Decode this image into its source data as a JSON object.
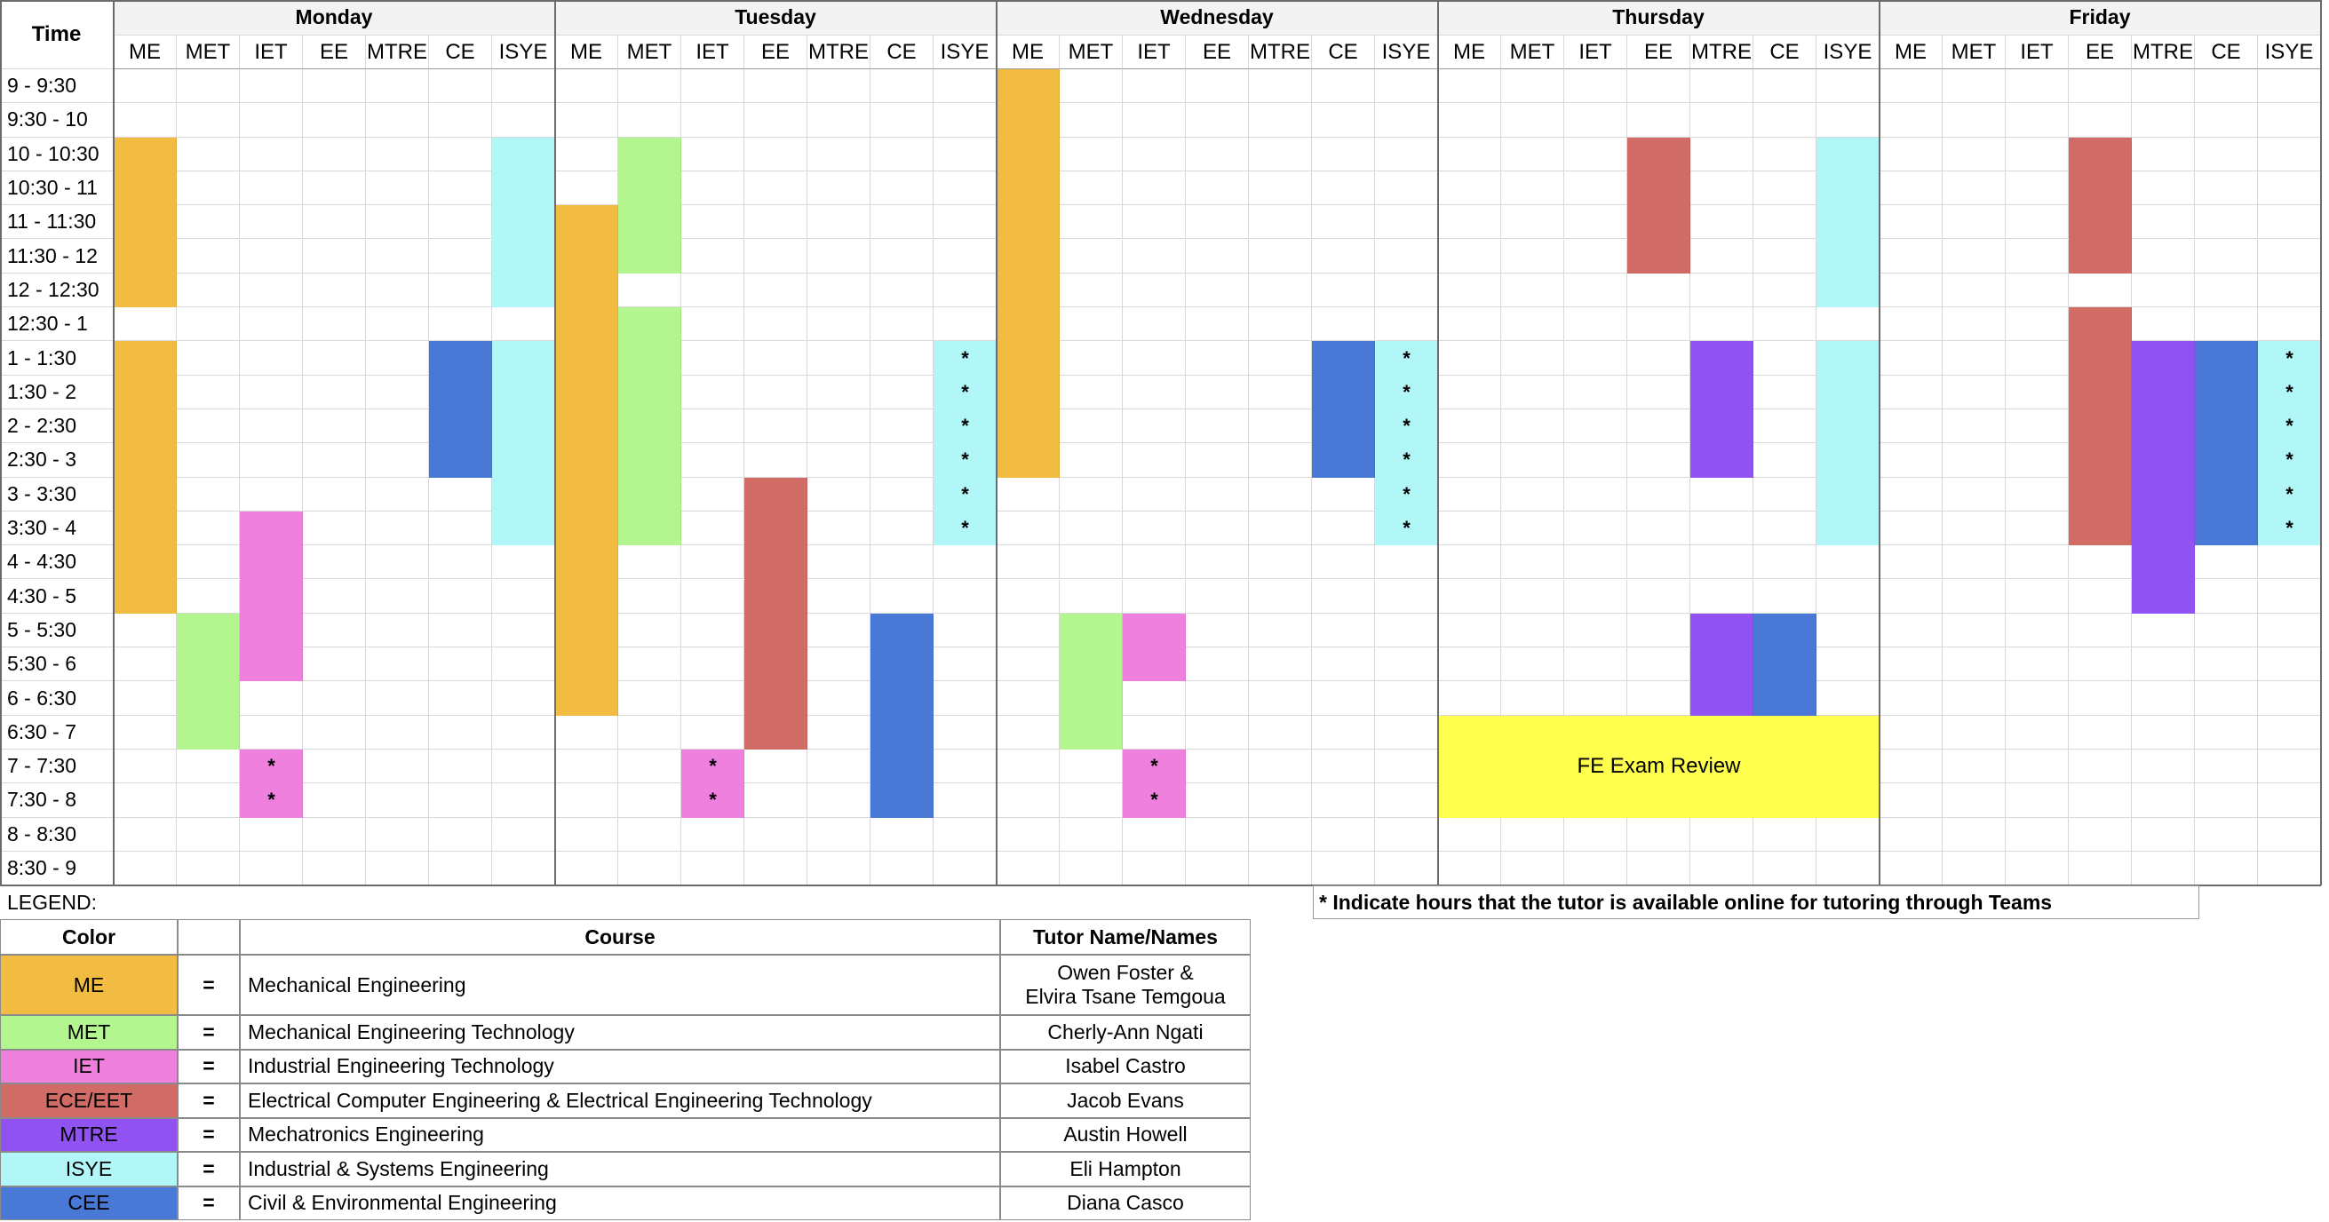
{
  "corner_label": "Time",
  "days": [
    "Monday",
    "Tuesday",
    "Wednesday",
    "Thursday",
    "Friday"
  ],
  "subjects": [
    "ME",
    "MET",
    "IET",
    "EE",
    "MTRE",
    "CE",
    "ISYE"
  ],
  "time_slots": [
    "9 - 9:30",
    "9:30 - 10",
    "10 - 10:30",
    "10:30 - 11",
    "11 - 11:30",
    "11:30 - 12",
    "12 - 12:30",
    "12:30 - 1",
    "1 - 1:30",
    "1:30 - 2",
    "2 - 2:30",
    "2:30 - 3",
    "3 - 3:30",
    "3:30 - 4",
    "4 - 4:30",
    "4:30 - 5",
    "5 - 5:30",
    "5:30 - 6",
    "6 - 6:30",
    "6:30 - 7",
    "7 - 7:30",
    "7:30 - 8",
    "8 - 8:30",
    "8:30 - 9"
  ],
  "colors": {
    "ME": "#f2bc42",
    "MET": "#b3f58f",
    "IET": "#f080dd",
    "EE": "#d16b66",
    "MTRE": "#9152f2",
    "CE": "#4a78d6",
    "ISYE": "#b2f7f7"
  },
  "schedule": [
    {
      "day": "Monday",
      "subject": "ME",
      "start": "10 - 10:30",
      "end": "12 - 12:30"
    },
    {
      "day": "Monday",
      "subject": "ME",
      "start": "1 - 1:30",
      "end": "4:30 - 5"
    },
    {
      "day": "Monday",
      "subject": "MET",
      "start": "5 - 5:30",
      "end": "6:30 - 7"
    },
    {
      "day": "Monday",
      "subject": "IET",
      "start": "3:30 - 4",
      "end": "5:30 - 6"
    },
    {
      "day": "Monday",
      "subject": "IET",
      "start": "7 - 7:30",
      "end": "7:30 - 8",
      "online": true
    },
    {
      "day": "Monday",
      "subject": "CE",
      "start": "1 - 1:30",
      "end": "2:30 - 3"
    },
    {
      "day": "Monday",
      "subject": "ISYE",
      "start": "10 - 10:30",
      "end": "12 - 12:30"
    },
    {
      "day": "Monday",
      "subject": "ISYE",
      "start": "1 - 1:30",
      "end": "3:30 - 4"
    },
    {
      "day": "Tuesday",
      "subject": "ME",
      "start": "11 - 11:30",
      "end": "6 - 6:30"
    },
    {
      "day": "Tuesday",
      "subject": "MET",
      "start": "10 - 10:30",
      "end": "11:30 - 12"
    },
    {
      "day": "Tuesday",
      "subject": "MET",
      "start": "12:30 - 1",
      "end": "3:30 - 4"
    },
    {
      "day": "Tuesday",
      "subject": "IET",
      "start": "7 - 7:30",
      "end": "7:30 - 8",
      "online": true
    },
    {
      "day": "Tuesday",
      "subject": "EE",
      "start": "3 - 3:30",
      "end": "6:30 - 7"
    },
    {
      "day": "Tuesday",
      "subject": "CE",
      "start": "5 - 5:30",
      "end": "7:30 - 8"
    },
    {
      "day": "Tuesday",
      "subject": "ISYE",
      "start": "1 - 1:30",
      "end": "3:30 - 4",
      "online": true
    },
    {
      "day": "Wednesday",
      "subject": "ME",
      "start": "9 - 9:30",
      "end": "2:30 - 3"
    },
    {
      "day": "Wednesday",
      "subject": "MET",
      "start": "5 - 5:30",
      "end": "6:30 - 7"
    },
    {
      "day": "Wednesday",
      "subject": "IET",
      "start": "5 - 5:30",
      "end": "5:30 - 6"
    },
    {
      "day": "Wednesday",
      "subject": "IET",
      "start": "7 - 7:30",
      "end": "7:30 - 8",
      "online": true
    },
    {
      "day": "Wednesday",
      "subject": "CE",
      "start": "1 - 1:30",
      "end": "2:30 - 3"
    },
    {
      "day": "Wednesday",
      "subject": "ISYE",
      "start": "1 - 1:30",
      "end": "3:30 - 4",
      "online": true
    },
    {
      "day": "Thursday",
      "subject": "EE",
      "start": "10 - 10:30",
      "end": "11:30 - 12"
    },
    {
      "day": "Thursday",
      "subject": "MTRE",
      "start": "1 - 1:30",
      "end": "2:30 - 3"
    },
    {
      "day": "Thursday",
      "subject": "MTRE",
      "start": "5 - 5:30",
      "end": "6 - 6:30"
    },
    {
      "day": "Thursday",
      "subject": "CE",
      "start": "5 - 5:30",
      "end": "6 - 6:30"
    },
    {
      "day": "Thursday",
      "subject": "ISYE",
      "start": "10 - 10:30",
      "end": "12 - 12:30"
    },
    {
      "day": "Thursday",
      "subject": "ISYE",
      "start": "1 - 1:30",
      "end": "3:30 - 4"
    },
    {
      "day": "Friday",
      "subject": "EE",
      "start": "10 - 10:30",
      "end": "11:30 - 12"
    },
    {
      "day": "Friday",
      "subject": "EE",
      "start": "12:30 - 1",
      "end": "3:30 - 4"
    },
    {
      "day": "Friday",
      "subject": "MTRE",
      "start": "1 - 1:30",
      "end": "4:30 - 5"
    },
    {
      "day": "Friday",
      "subject": "CE",
      "start": "1 - 1:30",
      "end": "3:30 - 4"
    },
    {
      "day": "Friday",
      "subject": "ISYE",
      "start": "1 - 1:30",
      "end": "3:30 - 4",
      "online": true
    }
  ],
  "event": {
    "label": "FE Exam Review",
    "day": "Thursday",
    "start": "6:30 - 7",
    "end": "7:30 - 8",
    "color": "#ffff4d"
  },
  "online_mark": "*",
  "legend": {
    "label": "LEGEND:",
    "note": "* Indicate hours that the tutor is available online for tutoring through Teams",
    "headers": {
      "color": "Color",
      "course": "Course",
      "tutor": "Tutor Name/Names"
    },
    "equals": "=",
    "rows": [
      {
        "code": "ME",
        "color": "#f2bc42",
        "course": "Mechanical Engineering",
        "tutor": [
          "Owen Foster &",
          "Elvira Tsane Temgoua"
        ]
      },
      {
        "code": "MET",
        "color": "#b3f58f",
        "course": "Mechanical Engineering Technology",
        "tutor": [
          "Cherly-Ann Ngati"
        ]
      },
      {
        "code": "IET",
        "color": "#f080dd",
        "course": "Industrial Engineering Technology",
        "tutor": [
          "Isabel Castro"
        ]
      },
      {
        "code": "ECE/EET",
        "color": "#d16b66",
        "course": "Electrical Computer Engineering & Electrical Engineering Technology",
        "tutor": [
          "Jacob Evans"
        ]
      },
      {
        "code": "MTRE",
        "color": "#9152f2",
        "course": "Mechatronics Engineering",
        "tutor": [
          "Austin Howell"
        ]
      },
      {
        "code": "ISYE",
        "color": "#b2f7f7",
        "course": "Industrial & Systems Engineering",
        "tutor": [
          "Eli Hampton"
        ]
      },
      {
        "code": "CEE",
        "color": "#4a78d6",
        "course": "Civil & Environmental Engineering",
        "tutor": [
          "Diana Casco"
        ]
      }
    ]
  }
}
